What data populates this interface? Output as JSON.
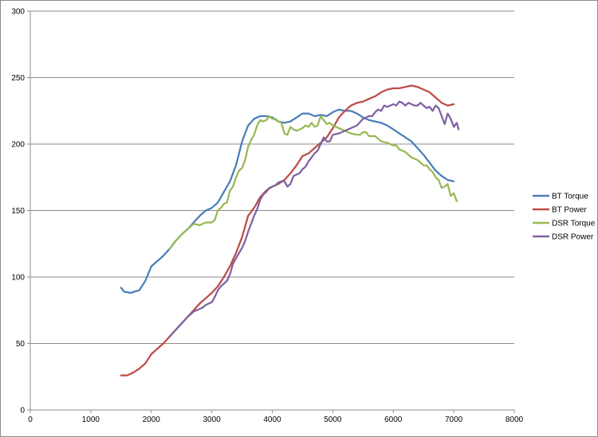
{
  "chart_data": {
    "type": "line",
    "title": "",
    "xlabel": "",
    "ylabel": "",
    "xlim": [
      0,
      8000
    ],
    "ylim": [
      0,
      300
    ],
    "xticks": [
      0,
      1000,
      2000,
      3000,
      4000,
      5000,
      6000,
      7000,
      8000
    ],
    "yticks": [
      0,
      50,
      100,
      150,
      200,
      250,
      300
    ],
    "grid": "horizontal",
    "legend_position": "right",
    "series": [
      {
        "name": "BT Torque",
        "color": "#4a7ebb",
        "points": [
          [
            1500,
            92
          ],
          [
            1550,
            89
          ],
          [
            1650,
            88
          ],
          [
            1800,
            90
          ],
          [
            1900,
            97
          ],
          [
            2000,
            108
          ],
          [
            2100,
            112
          ],
          [
            2200,
            116
          ],
          [
            2300,
            121
          ],
          [
            2400,
            127
          ],
          [
            2500,
            132
          ],
          [
            2600,
            136
          ],
          [
            2700,
            141
          ],
          [
            2800,
            146
          ],
          [
            2900,
            150
          ],
          [
            3000,
            152
          ],
          [
            3100,
            156
          ],
          [
            3200,
            164
          ],
          [
            3300,
            172
          ],
          [
            3400,
            184
          ],
          [
            3500,
            202
          ],
          [
            3600,
            214
          ],
          [
            3700,
            219
          ],
          [
            3800,
            221
          ],
          [
            3900,
            221
          ],
          [
            4000,
            220
          ],
          [
            4100,
            217
          ],
          [
            4200,
            216
          ],
          [
            4300,
            217
          ],
          [
            4400,
            220
          ],
          [
            4500,
            223
          ],
          [
            4600,
            223
          ],
          [
            4700,
            221
          ],
          [
            4800,
            222
          ],
          [
            4900,
            221
          ],
          [
            5000,
            224
          ],
          [
            5100,
            226
          ],
          [
            5200,
            225
          ],
          [
            5300,
            225
          ],
          [
            5400,
            223
          ],
          [
            5500,
            220
          ],
          [
            5600,
            218
          ],
          [
            5700,
            217
          ],
          [
            5800,
            216
          ],
          [
            5900,
            214
          ],
          [
            6000,
            211
          ],
          [
            6100,
            208
          ],
          [
            6200,
            205
          ],
          [
            6300,
            202
          ],
          [
            6400,
            197
          ],
          [
            6500,
            192
          ],
          [
            6600,
            186
          ],
          [
            6700,
            180
          ],
          [
            6800,
            176
          ],
          [
            6900,
            173
          ],
          [
            7000,
            172
          ]
        ]
      },
      {
        "name": "BT Power",
        "color": "#be4b48",
        "points": [
          [
            1500,
            26
          ],
          [
            1600,
            26
          ],
          [
            1700,
            28
          ],
          [
            1800,
            31
          ],
          [
            1900,
            35
          ],
          [
            2000,
            42
          ],
          [
            2100,
            46
          ],
          [
            2200,
            50
          ],
          [
            2300,
            55
          ],
          [
            2400,
            60
          ],
          [
            2500,
            65
          ],
          [
            2600,
            70
          ],
          [
            2700,
            75
          ],
          [
            2800,
            80
          ],
          [
            2900,
            84
          ],
          [
            3000,
            88
          ],
          [
            3100,
            93
          ],
          [
            3200,
            100
          ],
          [
            3300,
            108
          ],
          [
            3400,
            118
          ],
          [
            3500,
            130
          ],
          [
            3600,
            146
          ],
          [
            3700,
            152
          ],
          [
            3800,
            160
          ],
          [
            3900,
            165
          ],
          [
            4000,
            168
          ],
          [
            4100,
            170
          ],
          [
            4200,
            173
          ],
          [
            4300,
            178
          ],
          [
            4400,
            184
          ],
          [
            4500,
            191
          ],
          [
            4600,
            193
          ],
          [
            4700,
            197
          ],
          [
            4800,
            201
          ],
          [
            4900,
            205
          ],
          [
            5000,
            212
          ],
          [
            5100,
            220
          ],
          [
            5200,
            225
          ],
          [
            5300,
            229
          ],
          [
            5400,
            231
          ],
          [
            5500,
            232
          ],
          [
            5600,
            234
          ],
          [
            5700,
            236
          ],
          [
            5800,
            239
          ],
          [
            5900,
            241
          ],
          [
            6000,
            242
          ],
          [
            6100,
            242
          ],
          [
            6200,
            243
          ],
          [
            6300,
            244
          ],
          [
            6400,
            243
          ],
          [
            6500,
            241
          ],
          [
            6600,
            239
          ],
          [
            6700,
            235
          ],
          [
            6800,
            231
          ],
          [
            6900,
            229
          ],
          [
            7000,
            230
          ]
        ]
      },
      {
        "name": "DSR Torque",
        "color": "#98b954",
        "points": [
          [
            2300,
            121
          ],
          [
            2400,
            127
          ],
          [
            2500,
            132
          ],
          [
            2600,
            136
          ],
          [
            2700,
            140
          ],
          [
            2800,
            139
          ],
          [
            2900,
            141
          ],
          [
            3000,
            141
          ],
          [
            3050,
            143
          ],
          [
            3100,
            150
          ],
          [
            3150,
            152
          ],
          [
            3200,
            155
          ],
          [
            3250,
            156
          ],
          [
            3300,
            165
          ],
          [
            3350,
            168
          ],
          [
            3400,
            175
          ],
          [
            3450,
            180
          ],
          [
            3500,
            182
          ],
          [
            3550,
            188
          ],
          [
            3600,
            198
          ],
          [
            3650,
            203
          ],
          [
            3700,
            207
          ],
          [
            3750,
            214
          ],
          [
            3800,
            218
          ],
          [
            3850,
            217
          ],
          [
            3900,
            218
          ],
          [
            3950,
            221
          ],
          [
            4000,
            219
          ],
          [
            4050,
            219
          ],
          [
            4100,
            217
          ],
          [
            4150,
            216
          ],
          [
            4200,
            208
          ],
          [
            4250,
            207
          ],
          [
            4300,
            213
          ],
          [
            4350,
            211
          ],
          [
            4400,
            210
          ],
          [
            4450,
            211
          ],
          [
            4500,
            212
          ],
          [
            4550,
            214
          ],
          [
            4600,
            213
          ],
          [
            4650,
            216
          ],
          [
            4700,
            213
          ],
          [
            4750,
            214
          ],
          [
            4800,
            221
          ],
          [
            4850,
            218
          ],
          [
            4900,
            215
          ],
          [
            4950,
            216
          ],
          [
            5000,
            214
          ],
          [
            5100,
            212
          ],
          [
            5200,
            210
          ],
          [
            5300,
            208
          ],
          [
            5400,
            207
          ],
          [
            5450,
            207
          ],
          [
            5500,
            209
          ],
          [
            5550,
            209
          ],
          [
            5600,
            206
          ],
          [
            5700,
            206
          ],
          [
            5750,
            204
          ],
          [
            5800,
            202
          ],
          [
            5900,
            201
          ],
          [
            6000,
            199
          ],
          [
            6050,
            199
          ],
          [
            6100,
            196
          ],
          [
            6200,
            194
          ],
          [
            6300,
            190
          ],
          [
            6400,
            188
          ],
          [
            6450,
            186
          ],
          [
            6500,
            184
          ],
          [
            6550,
            184
          ],
          [
            6600,
            181
          ],
          [
            6650,
            179
          ],
          [
            6700,
            175
          ],
          [
            6750,
            173
          ],
          [
            6800,
            167
          ],
          [
            6850,
            168
          ],
          [
            6900,
            170
          ],
          [
            6950,
            161
          ],
          [
            7000,
            163
          ],
          [
            7050,
            157
          ]
        ]
      },
      {
        "name": "DSR Power",
        "color": "#7e62a1",
        "points": [
          [
            2300,
            55
          ],
          [
            2400,
            60
          ],
          [
            2500,
            65
          ],
          [
            2600,
            70
          ],
          [
            2700,
            74
          ],
          [
            2800,
            76
          ],
          [
            2850,
            77
          ],
          [
            2900,
            79
          ],
          [
            3000,
            81
          ],
          [
            3050,
            85
          ],
          [
            3100,
            90
          ],
          [
            3150,
            93
          ],
          [
            3200,
            95
          ],
          [
            3250,
            97
          ],
          [
            3300,
            102
          ],
          [
            3350,
            110
          ],
          [
            3400,
            114
          ],
          [
            3450,
            118
          ],
          [
            3500,
            122
          ],
          [
            3550,
            127
          ],
          [
            3600,
            134
          ],
          [
            3650,
            140
          ],
          [
            3700,
            146
          ],
          [
            3750,
            151
          ],
          [
            3800,
            158
          ],
          [
            3850,
            162
          ],
          [
            3900,
            164
          ],
          [
            3950,
            167
          ],
          [
            4000,
            168
          ],
          [
            4050,
            169
          ],
          [
            4100,
            171
          ],
          [
            4150,
            172
          ],
          [
            4200,
            172
          ],
          [
            4250,
            168
          ],
          [
            4300,
            170
          ],
          [
            4350,
            176
          ],
          [
            4400,
            177
          ],
          [
            4450,
            178
          ],
          [
            4500,
            181
          ],
          [
            4550,
            183
          ],
          [
            4600,
            187
          ],
          [
            4650,
            190
          ],
          [
            4700,
            193
          ],
          [
            4750,
            195
          ],
          [
            4800,
            200
          ],
          [
            4850,
            205
          ],
          [
            4900,
            202
          ],
          [
            4950,
            202
          ],
          [
            5000,
            207
          ],
          [
            5100,
            208
          ],
          [
            5200,
            210
          ],
          [
            5300,
            212
          ],
          [
            5400,
            214
          ],
          [
            5500,
            219
          ],
          [
            5600,
            221
          ],
          [
            5650,
            221
          ],
          [
            5700,
            224
          ],
          [
            5750,
            226
          ],
          [
            5800,
            225
          ],
          [
            5850,
            229
          ],
          [
            5900,
            228
          ],
          [
            5950,
            229
          ],
          [
            6000,
            230
          ],
          [
            6050,
            229
          ],
          [
            6100,
            232
          ],
          [
            6150,
            231
          ],
          [
            6200,
            229
          ],
          [
            6250,
            231
          ],
          [
            6300,
            230
          ],
          [
            6350,
            229
          ],
          [
            6400,
            229
          ],
          [
            6450,
            231
          ],
          [
            6500,
            229
          ],
          [
            6550,
            227
          ],
          [
            6600,
            228
          ],
          [
            6650,
            225
          ],
          [
            6700,
            229
          ],
          [
            6750,
            227
          ],
          [
            6800,
            221
          ],
          [
            6850,
            215
          ],
          [
            6900,
            223
          ],
          [
            6950,
            219
          ],
          [
            7000,
            213
          ],
          [
            7050,
            216
          ],
          [
            7080,
            211
          ]
        ]
      }
    ]
  }
}
